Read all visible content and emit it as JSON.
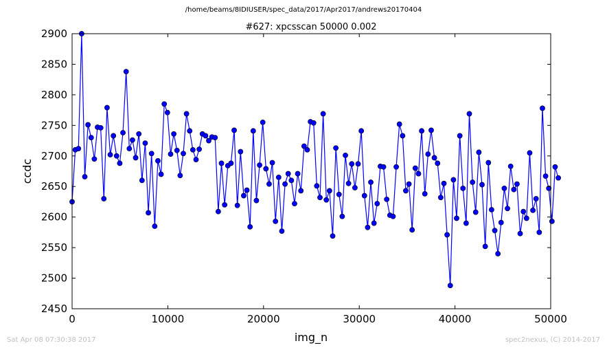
{
  "header": {
    "path": "/home/beams/8IDIUSER/spec_data/2017/Apr2017/andrews20170404"
  },
  "footer": {
    "timestamp": "Sat Apr 08 07:30:38 2017",
    "credit": "spec2nexus, (C) 2014-2017"
  },
  "chart_data": {
    "type": "line",
    "title": "#627: xpcsscan 50000 0.002",
    "xlabel": "img_n",
    "ylabel": "ccdc",
    "xlim": [
      0,
      50000
    ],
    "ylim": [
      2450,
      2900
    ],
    "xticks": [
      0,
      10000,
      20000,
      30000,
      40000,
      50000
    ],
    "yticks": [
      2450,
      2500,
      2550,
      2600,
      2650,
      2700,
      2750,
      2800,
      2850,
      2900
    ],
    "grid": false,
    "marker": "circle",
    "line_color": "#0000ff",
    "x_step": 332,
    "series": [
      {
        "values": [
          2625,
          2710,
          2712,
          2900,
          2666,
          2751,
          2730,
          2695,
          2747,
          2746,
          2630,
          2779,
          2702,
          2733,
          2700,
          2688,
          2738,
          2838,
          2712,
          2726,
          2697,
          2736,
          2660,
          2721,
          2607,
          2704,
          2585,
          2692,
          2670,
          2785,
          2771,
          2703,
          2736,
          2709,
          2668,
          2704,
          2769,
          2741,
          2710,
          2694,
          2711,
          2736,
          2733,
          2725,
          2731,
          2730,
          2609,
          2688,
          2620,
          2684,
          2688,
          2742,
          2619,
          2707,
          2635,
          2644,
          2584,
          2741,
          2627,
          2685,
          2755,
          2679,
          2654,
          2689,
          2593,
          2665,
          2577,
          2654,
          2671,
          2660,
          2622,
          2671,
          2643,
          2716,
          2710,
          2756,
          2754,
          2651,
          2632,
          2769,
          2628,
          2643,
          2569,
          2713,
          2637,
          2601,
          2701,
          2655,
          2687,
          2648,
          2687,
          2741,
          2635,
          2583,
          2657,
          2590,
          2622,
          2683,
          2682,
          2629,
          2603,
          2601,
          2682,
          2752,
          2733,
          2643,
          2654,
          2579,
          2680,
          2671,
          2741,
          2638,
          2703,
          2742,
          2697,
          2688,
          2632,
          2655,
          2571,
          2488,
          2661,
          2598,
          2733,
          2647,
          2590,
          2769,
          2657,
          2608,
          2706,
          2653,
          2552,
          2689,
          2612,
          2578,
          2540,
          2591,
          2647,
          2614,
          2683,
          2645,
          2654,
          2573,
          2609,
          2598,
          2705,
          2611,
          2630,
          2575,
          2778,
          2667,
          2647,
          2593,
          2682,
          2664
        ]
      }
    ]
  }
}
